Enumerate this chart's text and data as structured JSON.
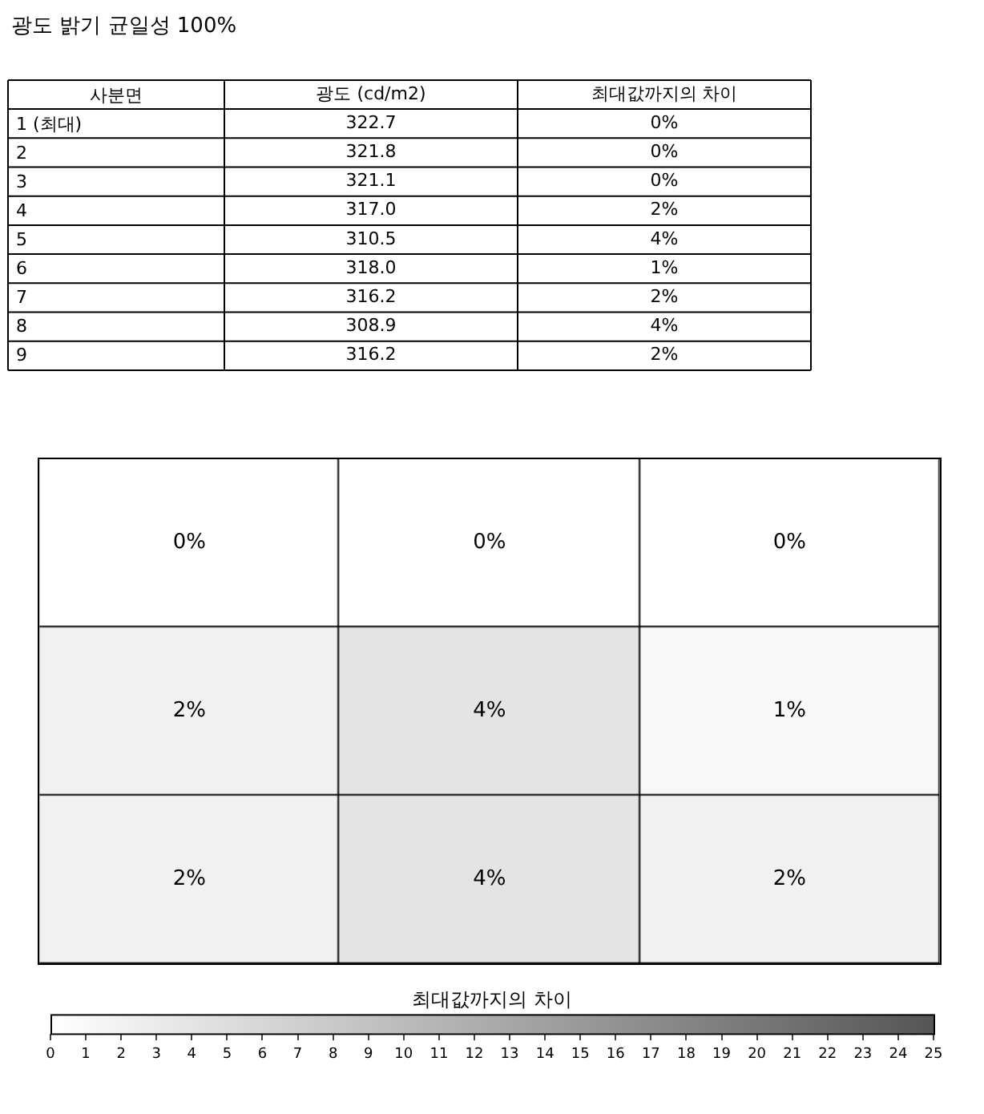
{
  "chart_data": [
    {
      "type": "heatmap",
      "title": "광도 밝기 균일성 100%",
      "ylabel": "사분면",
      "categories": [
        "광도 (cd/m2)",
        "최대값까지의 차이"
      ],
      "y_categories": [
        "1 (최대)",
        "2",
        "3",
        "4",
        "5",
        "6",
        "7",
        "8",
        "9"
      ],
      "cells": [
        [
          322.7,
          0
        ],
        [
          321.8,
          0
        ],
        [
          321.1,
          0
        ],
        [
          317.0,
          2
        ],
        [
          310.5,
          4
        ],
        [
          318.0,
          1
        ],
        [
          316.2,
          2
        ],
        [
          308.9,
          4
        ],
        [
          316.2,
          2
        ]
      ],
      "cell_labels": [
        [
          "322.7",
          "0%"
        ],
        [
          "321.8",
          "0%"
        ],
        [
          "321.1",
          "0%"
        ],
        [
          "317.0",
          "2%"
        ],
        [
          "310.5",
          "4%"
        ],
        [
          "318.0",
          "1%"
        ],
        [
          "316.2",
          "2%"
        ],
        [
          "308.9",
          "4%"
        ],
        [
          "316.2",
          "2%"
        ]
      ]
    },
    {
      "type": "heatmap",
      "categories": [
        null,
        null,
        null
      ],
      "y_categories": [
        null,
        null,
        null
      ],
      "cells": [
        [
          0,
          0,
          0
        ],
        [
          2,
          4,
          1
        ],
        [
          2,
          4,
          2
        ]
      ],
      "cell_labels": [
        [
          "0%",
          "0%",
          "0%"
        ],
        [
          "2%",
          "4%",
          "1%"
        ],
        [
          "2%",
          "4%",
          "2%"
        ]
      ],
      "clabel": "최대값까지의 차이",
      "clim": [
        0,
        25
      ],
      "cticks": [
        0,
        1,
        2,
        3,
        4,
        5,
        6,
        7,
        8,
        9,
        10,
        11,
        12,
        13,
        14,
        15,
        16,
        17,
        18,
        19,
        20,
        21,
        22,
        23,
        24,
        25
      ]
    }
  ]
}
